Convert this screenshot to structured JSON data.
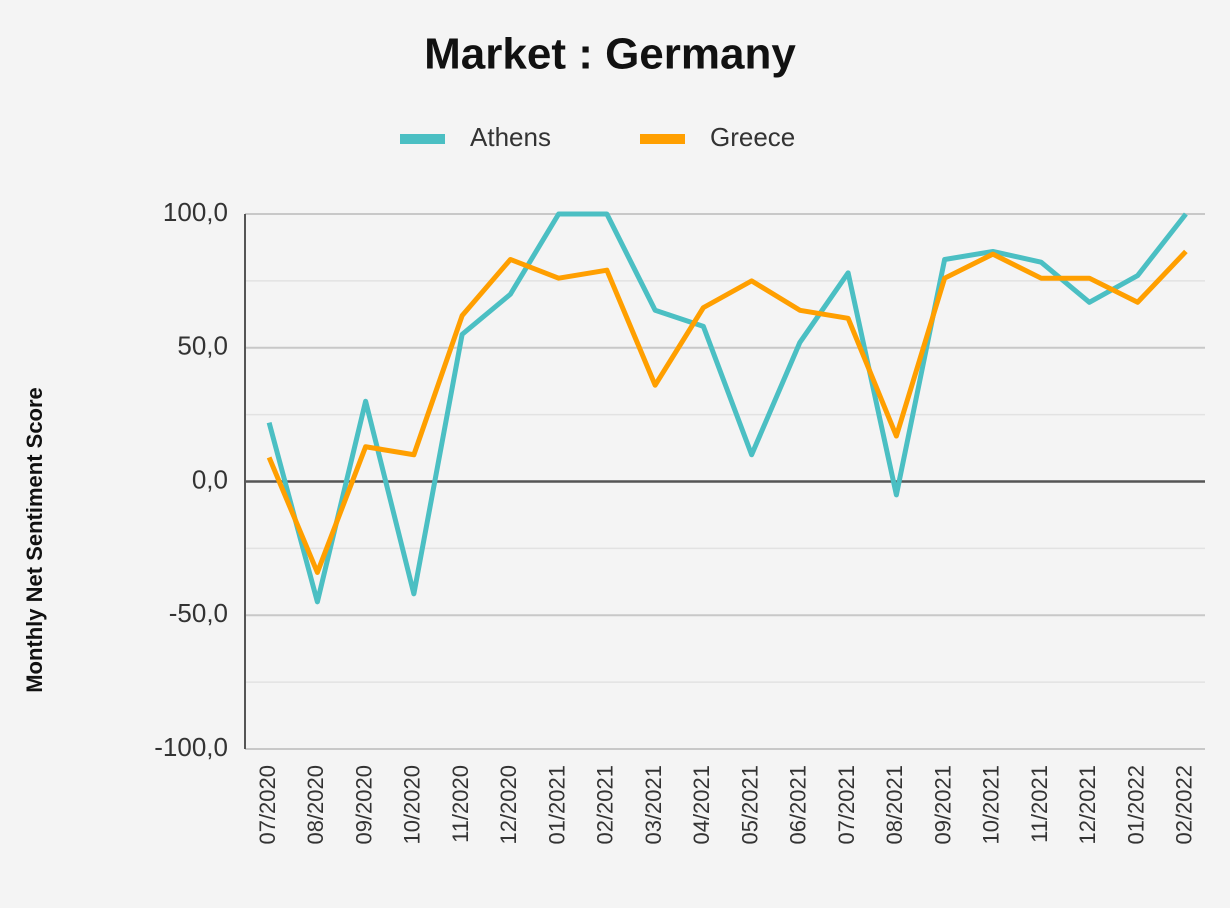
{
  "chart_data": {
    "type": "line",
    "title": "Market : Germany",
    "y_label": "Monthly Net Sentiment Score",
    "categories": [
      "07/2020",
      "08/2020",
      "09/2020",
      "10/2020",
      "11/2020",
      "12/2020",
      "01/2021",
      "02/2021",
      "03/2021",
      "04/2021",
      "05/2021",
      "06/2021",
      "07/2021",
      "08/2021",
      "09/2021",
      "10/2021",
      "11/2021",
      "12/2021",
      "01/2022",
      "02/2022"
    ],
    "series": [
      {
        "name": "Athens",
        "color": "#4bbfc3",
        "values": [
          22,
          -45,
          30,
          -42,
          55,
          70,
          100,
          100,
          64,
          58,
          10,
          52,
          78,
          -5,
          83,
          86,
          82,
          67,
          77,
          100
        ]
      },
      {
        "name": "Greece",
        "color": "#ff9f00",
        "values": [
          9,
          -34,
          13,
          10,
          62,
          83,
          76,
          79,
          36,
          65,
          75,
          64,
          61,
          17,
          76,
          85,
          76,
          76,
          67,
          86
        ]
      }
    ],
    "ylim": [
      -100,
      100
    ],
    "yticks": [
      {
        "value": -100,
        "label": "-100,0"
      },
      {
        "value": -50,
        "label": "-50,0"
      },
      {
        "value": 0,
        "label": "0,0"
      },
      {
        "value": 50,
        "label": "50,0"
      },
      {
        "value": 100,
        "label": "100,0"
      }
    ],
    "minor_yticks": [
      -75,
      -25,
      25,
      75
    ],
    "grid": true,
    "legend": "top"
  }
}
